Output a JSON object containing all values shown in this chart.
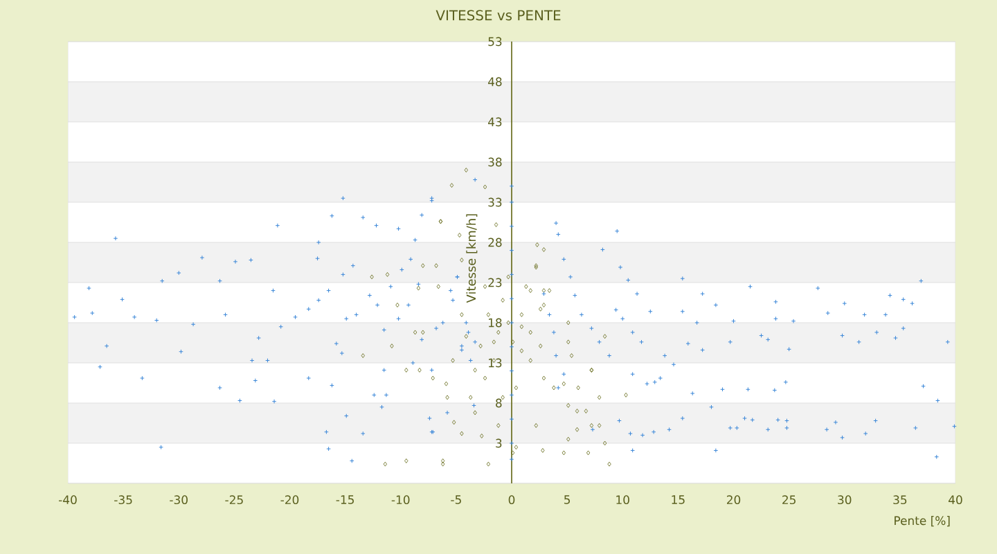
{
  "chart_data": {
    "type": "scatter",
    "title": "VITESSE vs PENTE",
    "xlabel": "Pente [%]",
    "ylabel": "Vitesse [km/h]",
    "xlim": [
      -40,
      40
    ],
    "xticks": [
      -40,
      -35,
      -30,
      -25,
      -20,
      -15,
      -10,
      -5,
      0,
      5,
      10,
      15,
      20,
      25,
      30,
      35,
      40
    ],
    "ylim": [
      -2,
      53
    ],
    "yticks": [
      {
        "value": -2,
        "label": null
      },
      3,
      8,
      13,
      18,
      23,
      28,
      33,
      38,
      43,
      48,
      53
    ],
    "grid": "y",
    "series": [
      {
        "color": "#5f6410",
        "marker": "diamond",
        "x": [
          -4.1,
          -5.4,
          -2.4,
          -1.4,
          -4.7,
          -6.4,
          -8.0,
          -6.6,
          2.2,
          2.3,
          2.9,
          -2.4,
          -0.3,
          1.3,
          -2.1,
          0.9,
          -1.2,
          1.7,
          -2.8,
          2.6,
          -1.6,
          1.7,
          -2.4,
          2.9,
          0.4,
          3.8,
          -0.8,
          5.1,
          6.7,
          7.9,
          -1.2,
          0.1,
          -2.1,
          0.4,
          -4.5,
          -6.2,
          2.2,
          -3.7,
          -3.3,
          -4.1,
          -4.5,
          -5.3,
          -5.8,
          -7.1,
          -8.0,
          -8.3,
          5.4,
          5.1,
          3.4,
          6.0,
          7.2,
          8.4,
          5.9,
          4.7,
          8.4,
          2.9,
          -0.3,
          0.1,
          0.9,
          -1.6,
          0.9,
          -0.8,
          2.6,
          -4.5,
          -6.4,
          -6.8,
          -8.4,
          -10.3,
          -11.2,
          -12.6,
          -13.4,
          -10.8,
          -9.5,
          -8.7,
          -11.4,
          -9.5,
          -6.2,
          -5.2,
          -5.9,
          -2.7,
          -3.3,
          2.2,
          2.9,
          5.1,
          7.2,
          4.7,
          5.9,
          7.9,
          7.2,
          5.1,
          8.8,
          10.3,
          6.9,
          2.8,
          1.7
        ],
        "values": [
          37.0,
          35.1,
          34.9,
          30.2,
          28.9,
          30.6,
          25.1,
          22.5,
          24.9,
          27.7,
          22.0,
          22.5,
          23.7,
          22.5,
          19.0,
          19.0,
          16.8,
          16.8,
          15.1,
          15.1,
          13.3,
          13.3,
          11.1,
          11.1,
          9.9,
          9.9,
          8.7,
          7.7,
          7.0,
          5.2,
          5.2,
          1.8,
          0.4,
          2.5,
          4.2,
          0.8,
          5.2,
          8.7,
          12.1,
          16.3,
          19.0,
          13.3,
          8.7,
          11.1,
          16.8,
          12.1,
          13.9,
          18.0,
          22.0,
          9.9,
          12.1,
          3.0,
          4.7,
          1.8,
          16.3,
          27.1,
          18.0,
          15.6,
          14.5,
          15.6,
          17.5,
          20.8,
          19.7,
          25.8,
          30.6,
          25.1,
          22.3,
          20.2,
          24.0,
          23.7,
          13.9,
          15.1,
          12.1,
          16.8,
          0.4,
          0.8,
          0.4,
          5.6,
          10.4,
          3.9,
          6.8,
          25.1,
          20.2,
          15.6,
          12.1,
          10.4,
          7.0,
          8.7,
          5.2,
          3.5,
          0.4,
          9.0,
          1.8,
          2.1,
          22.0
        ]
      },
      {
        "color": "#3a87d8",
        "marker": "cross",
        "x": [
          -38.1,
          -39.4,
          -37.8,
          -35.1,
          -35.7,
          -37.1,
          -36.5,
          -33.3,
          -31.6,
          -31.5,
          -30.0,
          -27.9,
          -24.9,
          -23.5,
          -21.1,
          -26.3,
          -26.3,
          -24.5,
          -21.4,
          -23.1,
          -23.4,
          -22.0,
          -34.0,
          -32.0,
          -29.8,
          -28.7,
          -25.8,
          -22.8,
          -21.5,
          -20.8,
          -19.5,
          -18.3,
          -17.4,
          -16.5,
          -15.2,
          -16.2,
          -17.4,
          -17.5,
          -15.2,
          -14.3,
          -14.9,
          -14.0,
          -15.8,
          -15.3,
          -18.3,
          -16.2,
          -14.9,
          -16.7,
          -16.5,
          -14.4,
          -13.4,
          -13.4,
          -12.8,
          -12.1,
          -10.9,
          -9.9,
          -11.5,
          -10.2,
          -9.3,
          -8.4,
          -10.2,
          -12.2,
          -11.5,
          -12.4,
          -11.3,
          -11.7,
          -9.1,
          -8.7,
          -8.1,
          -7.2,
          -7.2,
          -7.4,
          -7.2,
          -8.9,
          -8.1,
          -6.8,
          -5.5,
          -4.9,
          -4.5,
          -3.9,
          -5.8,
          -7.2,
          -3.3,
          -4.9,
          -5.3,
          -6.2,
          -4.1,
          -4.5,
          -3.7,
          -3.3,
          -3.4,
          -7.1,
          0,
          0,
          0,
          0,
          0,
          0,
          0,
          0,
          0,
          0,
          0,
          0,
          0,
          4.0,
          4.2,
          4.7,
          5.3,
          5.7,
          6.3,
          7.2,
          7.9,
          8.8,
          9.5,
          9.8,
          10.5,
          11.3,
          12.5,
          8.2,
          9.4,
          10.0,
          10.9,
          11.7,
          10.9,
          12.2,
          13.4,
          15.4,
          17.2,
          18.4,
          20.0,
          13.8,
          14.6,
          15.4,
          16.7,
          15.9,
          17.2,
          19.7,
          21.5,
          23.8,
          23.8,
          22.5,
          23.1,
          25.0,
          25.4,
          27.6,
          28.5,
          30.0,
          31.8,
          33.7,
          34.1,
          35.3,
          36.9,
          36.1,
          29.8,
          31.3,
          32.9,
          34.6,
          35.3,
          39.3,
          37.1,
          38.4,
          39.9,
          38.3,
          36.4,
          32.8,
          31.9,
          29.8,
          29.2,
          28.4,
          24.8,
          24.8,
          24.0,
          23.1,
          21.7,
          21.0,
          20.3,
          19.7,
          18.4,
          18.0,
          19.0,
          21.3,
          23.7,
          24.7,
          15.4,
          14.2,
          12.8,
          11.8,
          10.9,
          10.7,
          9.7,
          12.9,
          16.3,
          2.9,
          3.4,
          3.8,
          4.0,
          4.2,
          4.7,
          7.3
        ],
        "values": [
          22.3,
          18.7,
          19.2,
          20.9,
          28.5,
          12.5,
          15.1,
          11.1,
          2.5,
          23.2,
          24.2,
          26.1,
          25.6,
          25.8,
          30.1,
          23.2,
          9.9,
          8.3,
          8.2,
          10.8,
          13.3,
          13.3,
          18.7,
          18.3,
          14.4,
          17.8,
          19.0,
          16.1,
          22.0,
          17.5,
          18.7,
          19.7,
          20.8,
          22.0,
          33.5,
          31.3,
          28.0,
          26.0,
          24.0,
          25.1,
          18.5,
          19.0,
          15.4,
          14.2,
          11.1,
          10.2,
          6.4,
          4.4,
          2.3,
          0.8,
          4.2,
          31.1,
          21.4,
          20.2,
          22.5,
          24.6,
          17.1,
          18.5,
          20.2,
          22.8,
          29.7,
          30.1,
          12.1,
          9.0,
          9.0,
          7.5,
          25.9,
          28.3,
          31.4,
          33.2,
          12.1,
          6.1,
          4.4,
          13.0,
          15.9,
          17.3,
          22.0,
          23.7,
          14.6,
          16.8,
          6.8,
          33.5,
          35.8,
          23.7,
          20.8,
          18.0,
          18.0,
          15.1,
          13.3,
          15.6,
          7.7,
          4.4,
          35,
          33,
          30,
          27,
          24,
          21,
          18,
          15,
          12,
          9,
          6,
          3,
          1,
          30.4,
          29.0,
          25.9,
          23.7,
          21.4,
          19.0,
          17.3,
          15.6,
          13.9,
          29.4,
          24.9,
          23.3,
          21.6,
          19.4,
          27.1,
          19.6,
          18.5,
          16.8,
          15.6,
          11.6,
          10.4,
          11.1,
          23.5,
          21.6,
          20.2,
          18.2,
          13.9,
          12.8,
          19.4,
          18.0,
          15.4,
          14.6,
          15.6,
          22.5,
          20.6,
          18.5,
          16.4,
          15.9,
          14.7,
          18.2,
          22.3,
          19.2,
          20.4,
          19.0,
          19.0,
          21.4,
          20.9,
          23.2,
          20.4,
          16.4,
          15.6,
          16.8,
          16.1,
          17.3,
          15.6,
          10.1,
          8.3,
          5.1,
          1.3,
          4.9,
          5.8,
          4.2,
          3.7,
          5.6,
          4.7,
          4.9,
          5.8,
          5.9,
          4.7,
          5.9,
          6.1,
          4.9,
          4.9,
          2.1,
          7.5,
          9.7,
          9.7,
          9.6,
          10.6,
          6.1,
          4.7,
          4.4,
          4.0,
          2.1,
          4.2,
          5.8,
          10.6,
          9.2,
          21.6,
          19.0,
          16.8,
          13.9,
          9.9,
          11.6,
          4.7
        ]
      }
    ]
  }
}
